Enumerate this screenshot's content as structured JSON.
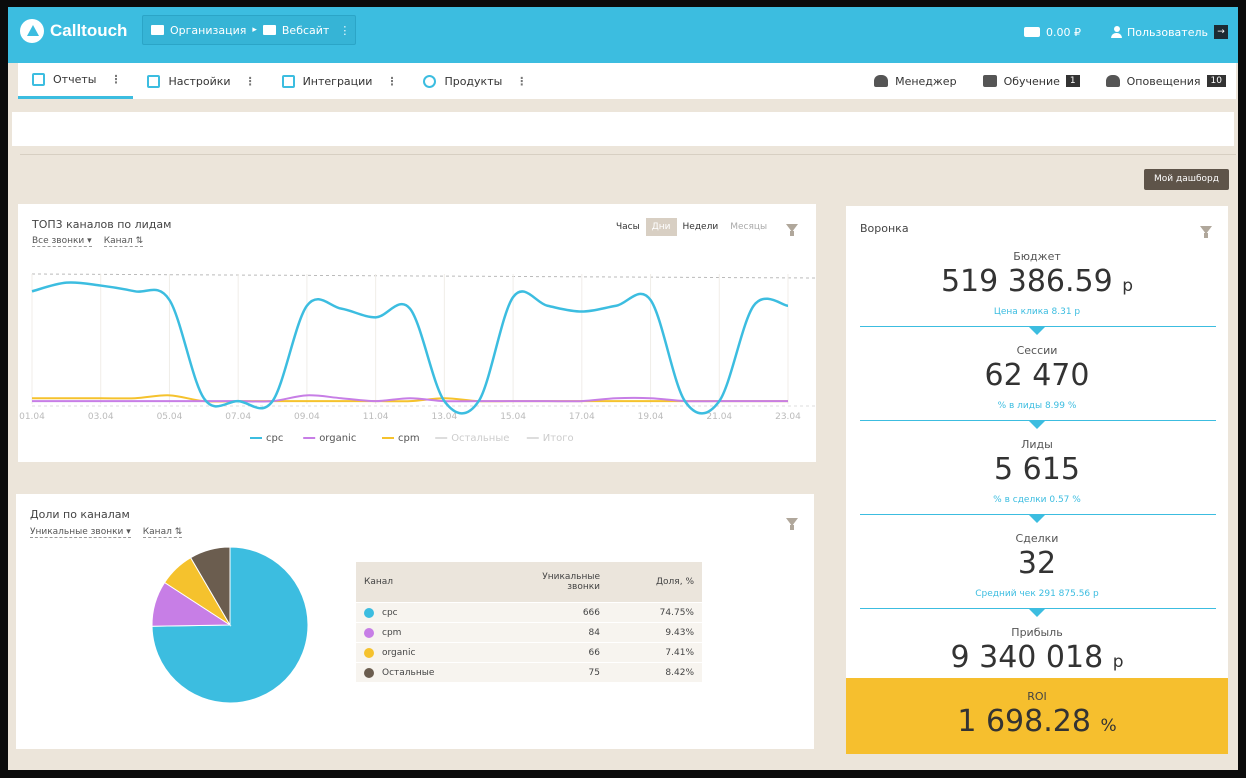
{
  "header": {
    "logo": "Calltouch",
    "org": "Организация",
    "site": "Вебсайт",
    "balance": "0.00 ₽",
    "user": "Пользователь"
  },
  "nav": {
    "items": [
      {
        "label": "Отчеты",
        "active": true
      },
      {
        "label": "Настройки"
      },
      {
        "label": "Интеграции"
      },
      {
        "label": "Продукты"
      }
    ],
    "manager": "Менеджер",
    "learning": "Обучение",
    "learning_count": "1",
    "notifications": "Оповещения",
    "notifications_count": "10"
  },
  "my_dashboard": "Мой дашборд",
  "line_card": {
    "title": "ТОП3 каналов по лидам",
    "filter1": "Все звонки",
    "filter2": "Канал",
    "periods": [
      "Часы",
      "Дни",
      "Недели",
      "Месяцы"
    ],
    "active_period": "Дни"
  },
  "pie_card": {
    "title": "Доли по каналам",
    "filter1": "Уникальные звонки",
    "filter2": "Канал",
    "table": {
      "headers": [
        "Канал",
        "Уникальные звонки",
        "Доля, %"
      ],
      "rows": [
        {
          "channel": "cpc",
          "calls": "666",
          "share": "74.75%",
          "color": "#3cbde0"
        },
        {
          "channel": "cpm",
          "calls": "84",
          "share": "9.43%",
          "color": "#c77ee6"
        },
        {
          "channel": "organic",
          "calls": "66",
          "share": "7.41%",
          "color": "#f5c22d"
        },
        {
          "channel": "Остальные",
          "calls": "75",
          "share": "8.42%",
          "color": "#6b5d4f"
        }
      ]
    }
  },
  "funnel": {
    "title": "Воронка",
    "budget_label": "Бюджет",
    "budget_value": "519 386.59",
    "budget_unit": "р",
    "budget_sub": "Цена клика 8.31 р",
    "sessions_label": "Сессии",
    "sessions_value": "62 470",
    "sessions_sub": "% в лиды 8.99 %",
    "leads_label": "Лиды",
    "leads_value": "5 615",
    "leads_sub": "% в сделки 0.57 %",
    "deals_label": "Сделки",
    "deals_value": "32",
    "deals_sub": "Средний чек 291 875.56 р",
    "profit_label": "Прибыль",
    "profit_value": "9 340 018",
    "profit_unit": "р",
    "roi_label": "ROI",
    "roi_value": "1 698.28",
    "roi_unit": "%"
  },
  "chart_data": [
    {
      "type": "line",
      "x": [
        "01.04",
        "02.04",
        "03.04",
        "04.04",
        "05.04",
        "06.04",
        "07.04",
        "08.04",
        "09.04",
        "10.04",
        "11.04",
        "12.04",
        "13.04",
        "14.04",
        "15.04",
        "16.04",
        "17.04",
        "18.04",
        "19.04",
        "20.04",
        "21.04",
        "22.04",
        "23.04"
      ],
      "xticks": [
        "01.04",
        "03.04",
        "05.04",
        "07.04",
        "09.04",
        "11.04",
        "13.04",
        "15.04",
        "17.04",
        "19.04",
        "21.04",
        "23.04"
      ],
      "series": [
        {
          "name": "cpc",
          "color": "#3cbde0",
          "values": [
            39,
            42,
            41,
            39,
            36,
            2,
            1,
            1,
            34,
            33,
            30,
            33,
            1,
            1,
            37,
            34,
            32,
            34,
            36,
            1,
            1,
            34,
            34
          ]
        },
        {
          "name": "organic",
          "color": "#c77ee6",
          "values": [
            1,
            1,
            1,
            1,
            1,
            1,
            1,
            1,
            3,
            2,
            1,
            2,
            1,
            1,
            1,
            1,
            1,
            2,
            2,
            1,
            1,
            1,
            1
          ]
        },
        {
          "name": "cpm",
          "color": "#f5c22d",
          "values": [
            2,
            2,
            2,
            2,
            3,
            1,
            1,
            1,
            1,
            1,
            1,
            1,
            2,
            1,
            1,
            1,
            1,
            1,
            1,
            1,
            1,
            1,
            1
          ]
        }
      ],
      "legend": [
        "cpc",
        "organic",
        "cpm",
        "Остальные",
        "Итого"
      ],
      "legend_colors": [
        "#3cbde0",
        "#c77ee6",
        "#f5c22d",
        "#dddddd",
        "#dddddd"
      ],
      "ylim": [
        0,
        45
      ],
      "grid": true
    },
    {
      "type": "pie",
      "labels": [
        "cpc",
        "cpm",
        "organic",
        "Остальные"
      ],
      "values": [
        74.75,
        9.43,
        7.41,
        8.42
      ],
      "colors": [
        "#3cbde0",
        "#c77ee6",
        "#f5c22d",
        "#6b5d4f"
      ]
    }
  ]
}
